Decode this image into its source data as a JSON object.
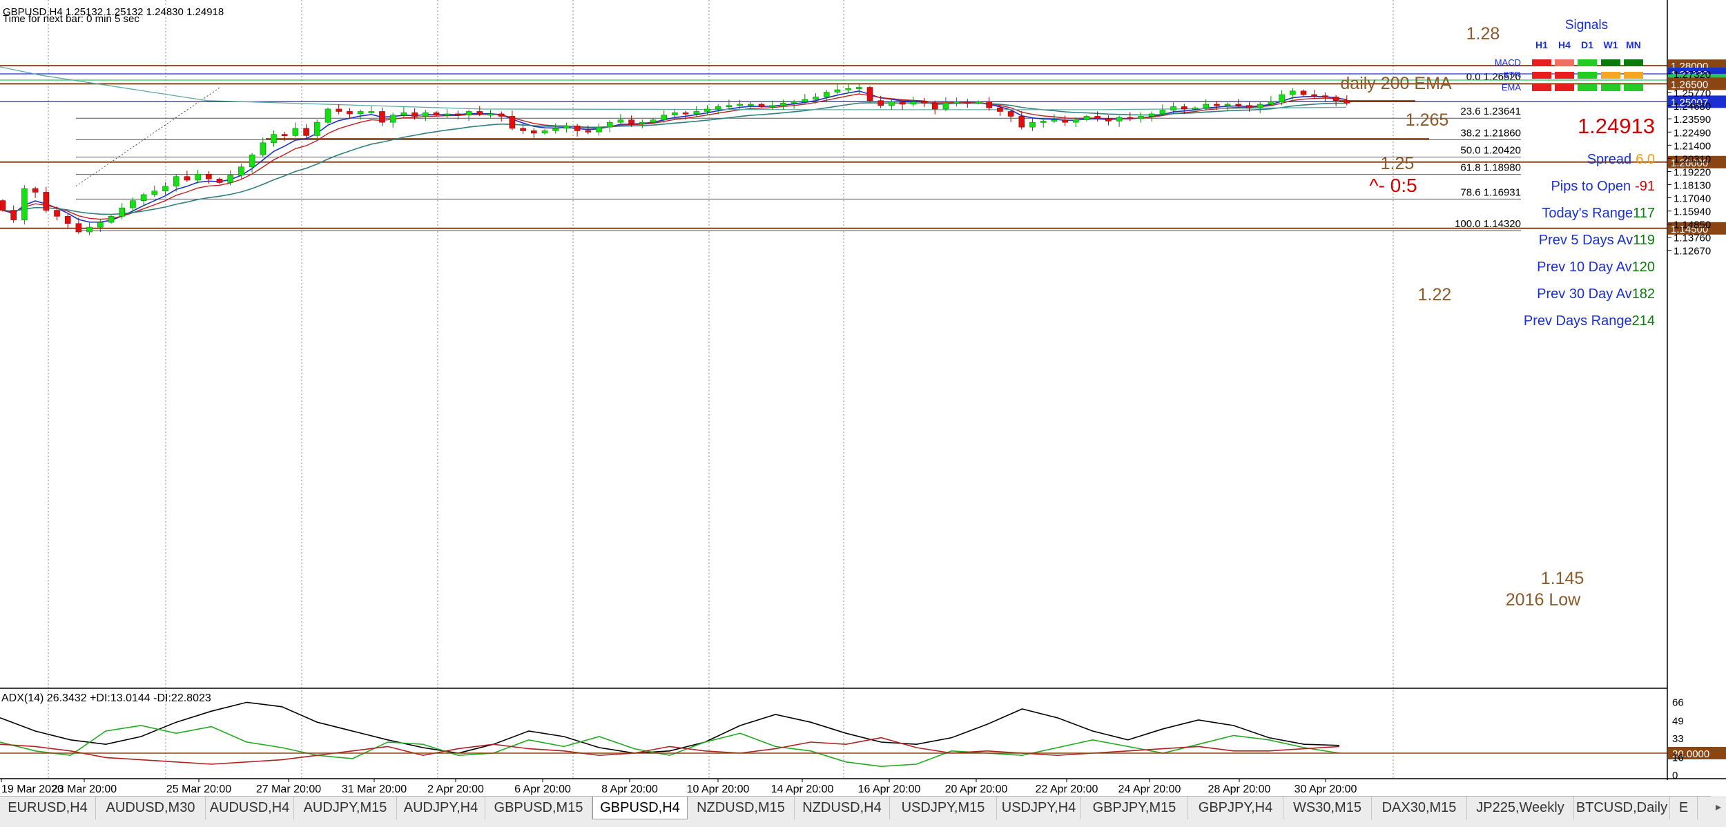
{
  "header": {
    "symbol_line": "GBPUSD,H4  1.25132 1.25132 1.24830 1.24918",
    "timer_line": "Time for next bar: 0 min 5 sec"
  },
  "signals": {
    "title": "Signals",
    "timeframes": [
      "H1",
      "H4",
      "D1",
      "W1",
      "MN"
    ],
    "rows": [
      {
        "name": "MACD",
        "colors": [
          "#e81d1d",
          "#f07060",
          "#22cc22",
          "#0a7a0a",
          "#0a7a0a"
        ]
      },
      {
        "name": "STR",
        "colors": [
          "#e81d1d",
          "#e81d1d",
          "#22cc22",
          "#f5a623",
          "#f5a623"
        ]
      },
      {
        "name": "EMA",
        "colors": [
          "#e81d1d",
          "#e81d1d",
          "#22cc22",
          "#22cc22",
          "#22cc22"
        ]
      }
    ]
  },
  "info": {
    "price": "1.24913",
    "spread_label": "Spread",
    "spread_value": "6.0",
    "pips_label": "Pips to Open",
    "pips_value": "-91",
    "todays_range_label": "Today's Range",
    "todays_range_value": "117",
    "prev5_label": "Prev 5 Days Av",
    "prev5_value": "119",
    "prev10_label": "Prev 10 Day Av",
    "prev10_value": "120",
    "prev30_label": "Prev 30 Day Av",
    "prev30_value": "182",
    "prevdays_label": "Prev Days Range",
    "prevdays_value": "214"
  },
  "annotations": {
    "level_128": "1.28",
    "ema_label": "daily 200 EMA",
    "level_1265": "1.265",
    "level_125": "1.25",
    "ratio": "^- 0:5",
    "level_122": "1.22",
    "level_1145": "1.145",
    "low_label": "2016 Low"
  },
  "tabs": {
    "items": [
      "EURUSD,H4",
      "AUDUSD,M30",
      "AUDUSD,H4",
      "AUDJPY,M15",
      "AUDJPY,H4",
      "GBPUSD,M15",
      "GBPUSD,H4",
      "NZDUSD,M15",
      "NZDUSD,H4",
      "USDJPY,M15",
      "USDJPY,H4",
      "GBPJPY,M15",
      "GBPJPY,H4",
      "WS30,M15",
      "DAX30,M15",
      "JP225,Weekly",
      "BTCUSD,Daily",
      "E"
    ],
    "active": "GBPUSD,H4"
  },
  "chart_data": {
    "type": "candlestick",
    "symbol": "GBPUSD",
    "timeframe": "H4",
    "ohlc_header": {
      "open": 1.25132,
      "high": 1.25132,
      "low": 1.2483,
      "close": 1.24918
    },
    "y_range": [
      1.116,
      1.289
    ],
    "price_ticks": [
      "1.27320",
      "1.25770",
      "1.24680",
      "1.23590",
      "1.22490",
      "1.21400",
      "1.20310",
      "1.19220",
      "1.18130",
      "1.17040",
      "1.15940",
      "1.14850",
      "1.13760",
      "1.12670"
    ],
    "time_labels": [
      "19 Mar 2020",
      "23 Mar 20:00",
      "25 Mar 20:00",
      "27 Mar 20:00",
      "31 Mar 20:00",
      "2 Apr 20:00",
      "6 Apr 20:00",
      "8 Apr 20:00",
      "10 Apr 20:00",
      "14 Apr 20:00",
      "16 Apr 20:00",
      "20 Apr 20:00",
      "22 Apr 20:00",
      "24 Apr 20:00",
      "28 Apr 20:00",
      "30 Apr 20:00"
    ],
    "horizontal_levels": [
      {
        "price": 1.28,
        "label": "1.28000",
        "color": "#8b4513"
      },
      {
        "price": 1.2732,
        "label": "1.27320",
        "color": "#1a2fd0"
      },
      {
        "price": 1.26803,
        "label": "1.26803",
        "color": "#22c55e"
      },
      {
        "price": 1.265,
        "label": "1.26500",
        "color": "#8b4513"
      },
      {
        "price": 1.25007,
        "label": "1.25007",
        "color": "#1a2fd0"
      },
      {
        "price": 1.2,
        "label": "1.20000",
        "color": "#8b4513"
      },
      {
        "price": 1.145,
        "label": "1.14500",
        "color": "#8b4513"
      }
    ],
    "fibonacci": [
      {
        "level": "0.0",
        "price": 1.2652,
        "price_label": "1.26520"
      },
      {
        "level": "23.6",
        "price": 1.23641,
        "price_label": "1.23641"
      },
      {
        "level": "38.2",
        "price": 1.2186,
        "price_label": "1.21860"
      },
      {
        "level": "50.0",
        "price": 1.2042,
        "price_label": "1.20420"
      },
      {
        "level": "61.8",
        "price": 1.1898,
        "price_label": "1.18980"
      },
      {
        "level": "78.6",
        "price": 1.16931,
        "price_label": "1.16931"
      },
      {
        "level": "100.0",
        "price": 1.1432,
        "price_label": "1.14320"
      }
    ],
    "candles_close": [
      1.16,
      1.152,
      1.178,
      1.175,
      1.16,
      1.155,
      1.149,
      1.142,
      1.146,
      1.15,
      1.155,
      1.162,
      1.168,
      1.173,
      1.176,
      1.18,
      1.188,
      1.185,
      1.19,
      1.186,
      1.183,
      1.189,
      1.196,
      1.206,
      1.216,
      1.223,
      1.222,
      1.228,
      1.222,
      1.233,
      1.244,
      1.242,
      1.24,
      1.242,
      1.242,
      1.233,
      1.239,
      1.241,
      1.238,
      1.241,
      1.239,
      1.24,
      1.239,
      1.242,
      1.24,
      1.24,
      1.238,
      1.228,
      1.226,
      1.224,
      1.226,
      1.228,
      1.23,
      1.226,
      1.225,
      1.229,
      1.233,
      1.235,
      1.232,
      1.233,
      1.235,
      1.239,
      1.241,
      1.24,
      1.242,
      1.244,
      1.246,
      1.247,
      1.248,
      1.248,
      1.246,
      1.247,
      1.249,
      1.25,
      1.252,
      1.254,
      1.258,
      1.26,
      1.261,
      1.262,
      1.251,
      1.247,
      1.25,
      1.248,
      1.25,
      1.249,
      1.244,
      1.249,
      1.25,
      1.249,
      1.25,
      1.245,
      1.242,
      1.238,
      1.229,
      1.233,
      1.234,
      1.235,
      1.233,
      1.235,
      1.238,
      1.236,
      1.234,
      1.237,
      1.236,
      1.238,
      1.24,
      1.243,
      1.246,
      1.244,
      1.245,
      1.248,
      1.247,
      1.248,
      1.247,
      1.245,
      1.248,
      1.25,
      1.256,
      1.259,
      1.256,
      1.255,
      1.254,
      1.251,
      1.249
    ],
    "indicator": {
      "name": "ADX(14)",
      "header": "ADX(14) 26.3432 +DI:13.0144 -DI:22.8023",
      "adx": 26.3432,
      "plus_di": 13.0144,
      "minus_di": 22.8023,
      "ticks": [
        "66",
        "49",
        "33",
        "16",
        "0"
      ],
      "level_label": "20.0000",
      "adx_values": [
        52,
        40,
        32,
        28,
        35,
        48,
        58,
        66,
        62,
        48,
        40,
        32,
        25,
        20,
        28,
        40,
        35,
        25,
        20,
        22,
        30,
        45,
        55,
        48,
        38,
        30,
        28,
        34,
        46,
        60,
        52,
        40,
        32,
        42,
        50,
        45,
        34,
        28,
        27
      ],
      "plus_values": [
        30,
        22,
        18,
        40,
        45,
        38,
        44,
        30,
        25,
        18,
        15,
        30,
        28,
        18,
        20,
        32,
        26,
        35,
        24,
        18,
        30,
        38,
        26,
        22,
        12,
        8,
        10,
        22,
        20,
        18,
        25,
        32,
        26,
        20,
        28,
        36,
        32,
        25,
        20
      ],
      "minus_values": [
        28,
        26,
        22,
        16,
        14,
        12,
        10,
        12,
        14,
        18,
        22,
        26,
        18,
        24,
        28,
        24,
        22,
        18,
        20,
        26,
        22,
        20,
        24,
        30,
        28,
        34,
        25,
        20,
        22,
        20,
        18,
        20,
        22,
        24,
        26,
        22,
        22,
        24,
        26
      ]
    }
  }
}
